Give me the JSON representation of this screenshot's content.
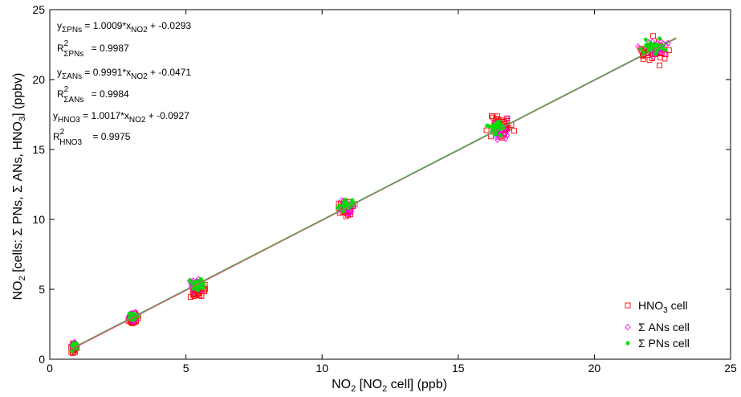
{
  "chart_data": {
    "type": "scatter",
    "xlim": [
      0,
      25
    ],
    "ylim": [
      0,
      25
    ],
    "x_ticks": [
      "0",
      "5",
      "10",
      "15",
      "20",
      "25"
    ],
    "y_ticks": [
      "0",
      "5",
      "10",
      "15",
      "20",
      "25"
    ],
    "xlabel": {
      "a": "NO",
      "a_sub": "2",
      "b": " [NO",
      "b_sub": "2",
      "c": " cell] (ppb)"
    },
    "ylabel": {
      "a": "NO",
      "a_sub": "2",
      "b": " [cells: Σ PNs, Σ ANs, HNO",
      "b_sub": "3",
      "c": "] (ppbv)"
    },
    "annotations": [
      {
        "id": "fit-pns",
        "y": "y",
        "y_sub": "ΣPNs",
        "eq": " = 1.0009*x",
        "x_sub": "NO2",
        "rest": " + -0.0293"
      },
      {
        "id": "r2-pns",
        "y": "R",
        "y_sup": "2",
        "y_sub": "ΣPNs",
        "eq": " = 0.9987"
      },
      {
        "id": "fit-ans",
        "y": "y",
        "y_sub": "ΣANs",
        "eq": " = 0.9991*x",
        "x_sub": "NO2",
        "rest": " + -0.0471"
      },
      {
        "id": "r2-ans",
        "y": "R",
        "y_sup": "2",
        "y_sub": "ΣANs",
        "eq": " = 0.9984"
      },
      {
        "id": "fit-hno3",
        "y": "y",
        "y_sub": "HNO3",
        "eq": " = 1.0017*x",
        "x_sub": "NO2",
        "rest": " + -0.0927"
      },
      {
        "id": "r2-hno3",
        "y": "R",
        "y_sup": "2",
        "y_sub": "HNO3",
        "eq": " = 0.9975"
      }
    ],
    "legend_position": "bottom-right",
    "series": [
      {
        "name": "HNO3 cell",
        "legend": {
          "a": "HNO",
          "sub": "3",
          "b": " cell"
        },
        "marker": "square",
        "color": "#ff0000",
        "fit": {
          "slope": 1.0017,
          "intercept": -0.0927,
          "x_range": [
            0.7,
            23.0
          ]
        },
        "fit_color": "#ff3030",
        "clusters": [
          {
            "x": 0.9,
            "y": 0.8,
            "sx": 0.08,
            "sy": 0.25,
            "n": 26
          },
          {
            "x": 3.05,
            "y": 2.9,
            "sx": 0.13,
            "sy": 0.28,
            "n": 32
          },
          {
            "x": 5.4,
            "y": 5.0,
            "sx": 0.22,
            "sy": 0.4,
            "n": 34
          },
          {
            "x": 10.9,
            "y": 10.8,
            "sx": 0.2,
            "sy": 0.45,
            "n": 34
          },
          {
            "x": 16.5,
            "y": 16.6,
            "sx": 0.28,
            "sy": 0.55,
            "n": 36
          },
          {
            "x": 22.2,
            "y": 22.0,
            "sx": 0.35,
            "sy": 0.6,
            "n": 40
          }
        ]
      },
      {
        "name": "Σ ANs cell",
        "legend": {
          "a": "Σ ANs cell"
        },
        "marker": "diamond",
        "color": "#ff00ff",
        "fit": {
          "slope": 0.9991,
          "intercept": -0.0471,
          "x_range": [
            0.7,
            23.0
          ]
        },
        "fit_color": "#888888",
        "clusters": [
          {
            "x": 0.9,
            "y": 0.9,
            "sx": 0.07,
            "sy": 0.2,
            "n": 18
          },
          {
            "x": 3.05,
            "y": 3.0,
            "sx": 0.12,
            "sy": 0.25,
            "n": 22
          },
          {
            "x": 5.4,
            "y": 5.3,
            "sx": 0.2,
            "sy": 0.3,
            "n": 24
          },
          {
            "x": 10.9,
            "y": 10.9,
            "sx": 0.18,
            "sy": 0.35,
            "n": 22
          },
          {
            "x": 16.5,
            "y": 16.4,
            "sx": 0.25,
            "sy": 0.45,
            "n": 26
          },
          {
            "x": 22.3,
            "y": 22.2,
            "sx": 0.35,
            "sy": 0.4,
            "n": 28
          }
        ]
      },
      {
        "name": "Σ PNs cell",
        "legend": {
          "a": "Σ PNs cell"
        },
        "marker": "star",
        "color": "#00dd00",
        "fit": {
          "slope": 1.0009,
          "intercept": -0.0293,
          "x_range": [
            0.7,
            23.0
          ]
        },
        "fit_color": "#22bb22",
        "clusters": [
          {
            "x": 0.9,
            "y": 0.9,
            "sx": 0.07,
            "sy": 0.18,
            "n": 18
          },
          {
            "x": 3.05,
            "y": 3.05,
            "sx": 0.12,
            "sy": 0.2,
            "n": 22
          },
          {
            "x": 5.4,
            "y": 5.35,
            "sx": 0.2,
            "sy": 0.28,
            "n": 26
          },
          {
            "x": 10.9,
            "y": 11.0,
            "sx": 0.2,
            "sy": 0.3,
            "n": 24
          },
          {
            "x": 16.4,
            "y": 16.5,
            "sx": 0.25,
            "sy": 0.4,
            "n": 28
          },
          {
            "x": 22.2,
            "y": 22.3,
            "sx": 0.3,
            "sy": 0.35,
            "n": 30
          }
        ]
      }
    ]
  }
}
